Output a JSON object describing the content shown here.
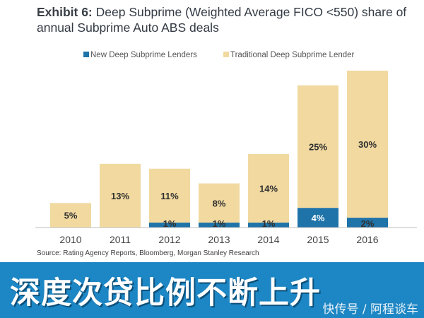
{
  "chart_data": {
    "type": "bar",
    "stacked": true,
    "title_prefix": "Exhibit 6:",
    "title": "Deep Subprime (Weighted Average FICO <550) share of annual Subprime Auto ABS deals",
    "categories": [
      "2010",
      "2011",
      "2012",
      "2013",
      "2014",
      "2015",
      "2016"
    ],
    "series": [
      {
        "name": "New Deep Subprime Lenders",
        "color": "#1e73a8",
        "values": [
          0,
          0,
          1,
          1,
          1,
          4,
          2
        ]
      },
      {
        "name": "Traditional Deep Subprime Lender",
        "color": "#f1d9a0",
        "values": [
          5,
          13,
          11,
          8,
          14,
          25,
          30
        ]
      }
    ],
    "data_labels": {
      "new": [
        "",
        "",
        "1%",
        "1%",
        "1%",
        "4%",
        "2%"
      ],
      "traditional": [
        "5%",
        "13%",
        "11%",
        "8%",
        "14%",
        "25%",
        "30%"
      ]
    },
    "legend_position": "top",
    "grid": false,
    "ylim": [
      0,
      32
    ],
    "source": "Source: Rating Agency Reports, Bloomberg, Morgan Stanley Research"
  },
  "banner": {
    "text": "深度次贷比例不断上升",
    "watermark": "快传号 / 阿程谈车"
  },
  "colors": {
    "banner": "#1d86c4",
    "label_dark": "#2f2f2f",
    "label_light": "#ffffff"
  }
}
